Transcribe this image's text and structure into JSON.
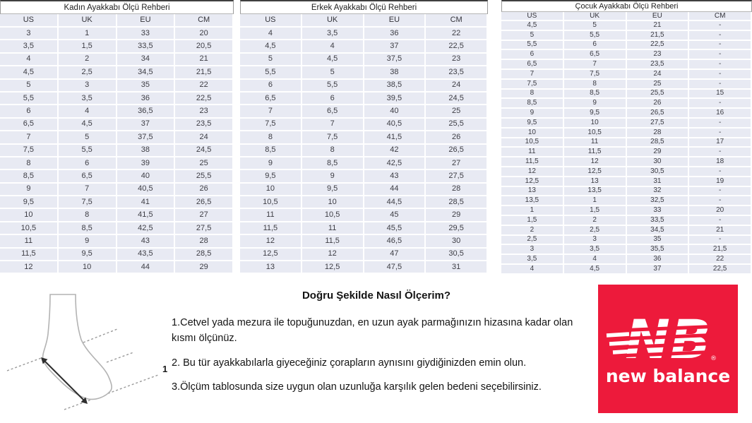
{
  "tables": [
    {
      "title": "Kadın Ayakkabı Ölçü Rehberi",
      "columns": [
        "US",
        "UK",
        "EU",
        "CM"
      ],
      "rows": [
        [
          "3",
          "1",
          "33",
          "20"
        ],
        [
          "3,5",
          "1,5",
          "33,5",
          "20,5"
        ],
        [
          "4",
          "2",
          "34",
          "21"
        ],
        [
          "4,5",
          "2,5",
          "34,5",
          "21,5"
        ],
        [
          "5",
          "3",
          "35",
          "22"
        ],
        [
          "5,5",
          "3,5",
          "36",
          "22,5"
        ],
        [
          "6",
          "4",
          "36,5",
          "23"
        ],
        [
          "6,5",
          "4,5",
          "37",
          "23,5"
        ],
        [
          "7",
          "5",
          "37,5",
          "24"
        ],
        [
          "7,5",
          "5,5",
          "38",
          "24,5"
        ],
        [
          "8",
          "6",
          "39",
          "25"
        ],
        [
          "8,5",
          "6,5",
          "40",
          "25,5"
        ],
        [
          "9",
          "7",
          "40,5",
          "26"
        ],
        [
          "9,5",
          "7,5",
          "41",
          "26,5"
        ],
        [
          "10",
          "8",
          "41,5",
          "27"
        ],
        [
          "10,5",
          "8,5",
          "42,5",
          "27,5"
        ],
        [
          "11",
          "9",
          "43",
          "28"
        ],
        [
          "11,5",
          "9,5",
          "43,5",
          "28,5"
        ],
        [
          "12",
          "10",
          "44",
          "29"
        ]
      ]
    },
    {
      "title": "Erkek Ayakkabı Ölçü Rehberi",
      "columns": [
        "US",
        "UK",
        "EU",
        "CM"
      ],
      "rows": [
        [
          "4",
          "3,5",
          "36",
          "22"
        ],
        [
          "4,5",
          "4",
          "37",
          "22,5"
        ],
        [
          "5",
          "4,5",
          "37,5",
          "23"
        ],
        [
          "5,5",
          "5",
          "38",
          "23,5"
        ],
        [
          "6",
          "5,5",
          "38,5",
          "24"
        ],
        [
          "6,5",
          "6",
          "39,5",
          "24,5"
        ],
        [
          "7",
          "6,5",
          "40",
          "25"
        ],
        [
          "7,5",
          "7",
          "40,5",
          "25,5"
        ],
        [
          "8",
          "7,5",
          "41,5",
          "26"
        ],
        [
          "8,5",
          "8",
          "42",
          "26,5"
        ],
        [
          "9",
          "8,5",
          "42,5",
          "27"
        ],
        [
          "9,5",
          "9",
          "43",
          "27,5"
        ],
        [
          "10",
          "9,5",
          "44",
          "28"
        ],
        [
          "10,5",
          "10",
          "44,5",
          "28,5"
        ],
        [
          "11",
          "10,5",
          "45",
          "29"
        ],
        [
          "11,5",
          "11",
          "45,5",
          "29,5"
        ],
        [
          "12",
          "11,5",
          "46,5",
          "30"
        ],
        [
          "12,5",
          "12",
          "47",
          "30,5"
        ],
        [
          "13",
          "12,5",
          "47,5",
          "31"
        ]
      ]
    },
    {
      "title": "Çocuk Ayakkabı Ölçü Rehberi",
      "columns": [
        "US",
        "UK",
        "EU",
        "CM"
      ],
      "rows": [
        [
          "4,5",
          "5",
          "21",
          "-"
        ],
        [
          "5",
          "5,5",
          "21,5",
          "-"
        ],
        [
          "5,5",
          "6",
          "22,5",
          "-"
        ],
        [
          "6",
          "6,5",
          "23",
          "-"
        ],
        [
          "6,5",
          "7",
          "23,5",
          "-"
        ],
        [
          "7",
          "7,5",
          "24",
          "-"
        ],
        [
          "7,5",
          "8",
          "25",
          "-"
        ],
        [
          "8",
          "8,5",
          "25,5",
          "15"
        ],
        [
          "8,5",
          "9",
          "26",
          "-"
        ],
        [
          "9",
          "9,5",
          "26,5",
          "16"
        ],
        [
          "9,5",
          "10",
          "27,5",
          "-"
        ],
        [
          "10",
          "10,5",
          "28",
          "-"
        ],
        [
          "10,5",
          "11",
          "28,5",
          "17"
        ],
        [
          "11",
          "11,5",
          "29",
          "-"
        ],
        [
          "11,5",
          "12",
          "30",
          "18"
        ],
        [
          "12",
          "12,5",
          "30,5",
          "-"
        ],
        [
          "12,5",
          "13",
          "31",
          "19"
        ],
        [
          "13",
          "13,5",
          "32",
          "-"
        ],
        [
          "13,5",
          "1",
          "32,5",
          "-"
        ],
        [
          "1",
          "1,5",
          "33",
          "20"
        ],
        [
          "1,5",
          "2",
          "33,5",
          "-"
        ],
        [
          "2",
          "2,5",
          "34,5",
          "21"
        ],
        [
          "2,5",
          "3",
          "35",
          "-"
        ],
        [
          "3",
          "3,5",
          "35,5",
          "21,5"
        ],
        [
          "3,5",
          "4",
          "36",
          "22"
        ],
        [
          "4",
          "4,5",
          "37",
          "22,5"
        ]
      ]
    }
  ],
  "instructions": {
    "title": "Doğru Şekilde Nasıl Ölçerim?",
    "steps": [
      "1.Cetvel yada mezura ile topuğunuzdan, en uzun ayak parmağınızın hizasına kadar olan kısmı ölçünüz.",
      "2. Bu tür ayakkabılarla giyeceğiniz çorapların aynısını giydiğinizden emin olun.",
      "3.Ölçüm tablosunda size uygun olan uzunluğa karşılık gelen bedeni seçebilirsiniz."
    ]
  },
  "diagram": {
    "measure_label": "1"
  },
  "logo": {
    "monogram": "NB",
    "brand": "new balance",
    "registered": "®",
    "bg_color": "#ed1a3b",
    "text_color": "#ffffff"
  },
  "colors": {
    "row_bg": "#e8eaf3",
    "grid_line": "#ffffff",
    "table_top_border": "#3f3f3f",
    "cell_text": "#3d3d44"
  }
}
